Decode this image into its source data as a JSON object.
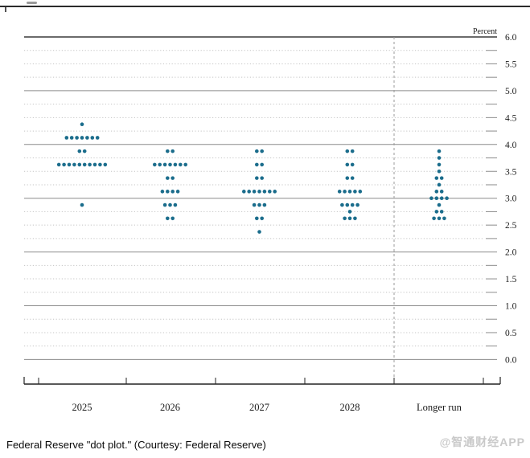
{
  "chart_data": {
    "type": "scatter",
    "subtype": "fomc-dot-plot",
    "unit_label": "Percent",
    "ylim": [
      0.0,
      6.0
    ],
    "ytick_labels": [
      "6.0",
      "5.5",
      "5.0",
      "4.5",
      "4.0",
      "3.5",
      "3.0",
      "2.5",
      "2.0",
      "1.5",
      "1.0",
      "0.5",
      "0.0"
    ],
    "grid": {
      "solid_at": "integers",
      "dotted_at": "quarter steps",
      "separator": "dashed vertical before Longer run"
    },
    "categories": [
      "2025",
      "2026",
      "2027",
      "2028",
      "Longer run"
    ],
    "series": [
      {
        "name": "2025",
        "dots": [
          {
            "rate": 4.375,
            "count": 1
          },
          {
            "rate": 4.125,
            "count": 7
          },
          {
            "rate": 3.875,
            "count": 2
          },
          {
            "rate": 3.625,
            "count": 10
          },
          {
            "rate": 2.875,
            "count": 1
          }
        ]
      },
      {
        "name": "2026",
        "dots": [
          {
            "rate": 3.875,
            "count": 2
          },
          {
            "rate": 3.625,
            "count": 7
          },
          {
            "rate": 3.375,
            "count": 2
          },
          {
            "rate": 3.125,
            "count": 4
          },
          {
            "rate": 2.875,
            "count": 3
          },
          {
            "rate": 2.625,
            "count": 2
          }
        ]
      },
      {
        "name": "2027",
        "dots": [
          {
            "rate": 3.875,
            "count": 2
          },
          {
            "rate": 3.625,
            "count": 2
          },
          {
            "rate": 3.375,
            "count": 2
          },
          {
            "rate": 3.125,
            "count": 7
          },
          {
            "rate": 2.875,
            "count": 3
          },
          {
            "rate": 2.625,
            "count": 2
          },
          {
            "rate": 2.375,
            "count": 1
          }
        ]
      },
      {
        "name": "2028",
        "dots": [
          {
            "rate": 3.875,
            "count": 2
          },
          {
            "rate": 3.625,
            "count": 2
          },
          {
            "rate": 3.375,
            "count": 2
          },
          {
            "rate": 3.125,
            "count": 5
          },
          {
            "rate": 2.875,
            "count": 4
          },
          {
            "rate": 2.75,
            "count": 1
          },
          {
            "rate": 2.625,
            "count": 3
          }
        ]
      },
      {
        "name": "Longer run",
        "dots": [
          {
            "rate": 3.875,
            "count": 1
          },
          {
            "rate": 3.75,
            "count": 1
          },
          {
            "rate": 3.625,
            "count": 1
          },
          {
            "rate": 3.5,
            "count": 1
          },
          {
            "rate": 3.375,
            "count": 2
          },
          {
            "rate": 3.25,
            "count": 1
          },
          {
            "rate": 3.125,
            "count": 2
          },
          {
            "rate": 3.0,
            "count": 4
          },
          {
            "rate": 2.875,
            "count": 1
          },
          {
            "rate": 2.75,
            "count": 2
          },
          {
            "rate": 2.625,
            "count": 3
          }
        ]
      }
    ]
  },
  "colors": {
    "dot": "#1b6d8c",
    "solid_grid": "#8c8c8c",
    "top_grid": "#3a3a3a",
    "dotted_grid": "#c4c4c4",
    "axis": "#222222",
    "label": "#1a1a1a",
    "watermark": "#c9c9c9"
  },
  "caption": "Federal Reserve \"dot plot.\" (Courtesy: Federal Reserve)",
  "watermark": "@智通财经APP"
}
